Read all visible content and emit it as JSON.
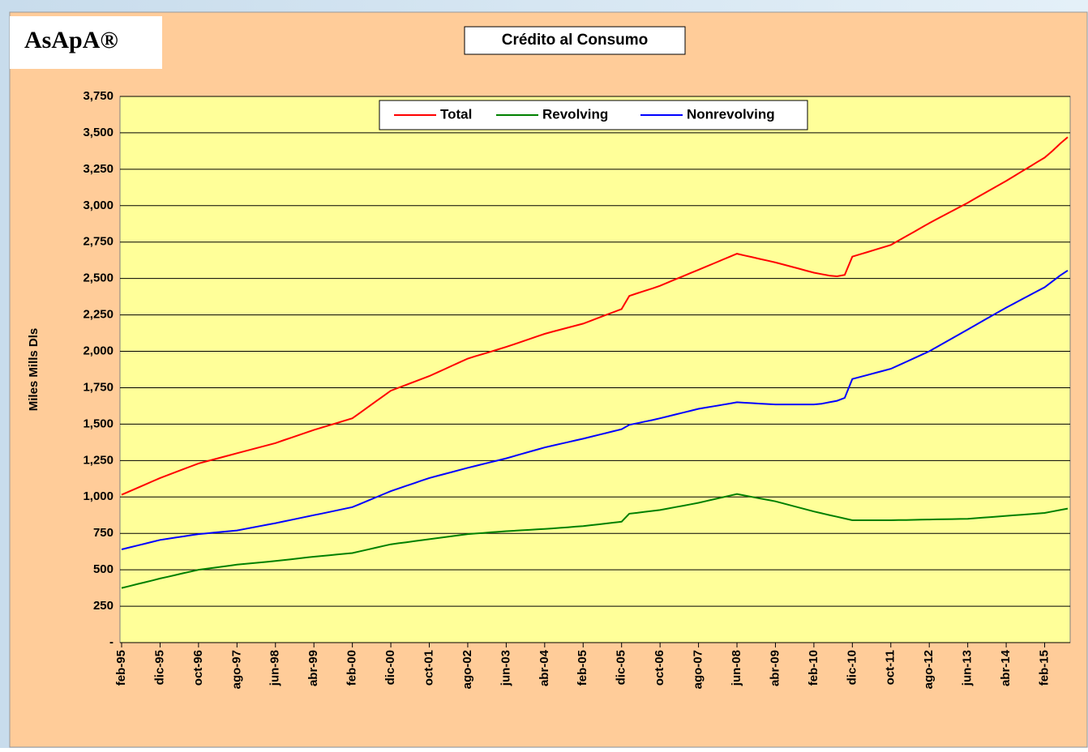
{
  "logo": "AsApA®",
  "chart_data": {
    "type": "line",
    "title": "Crédito al Consumo",
    "y_label": "Miles Mills Dls",
    "categories": [
      "feb-95",
      null,
      null,
      null,
      null,
      "dic-95",
      null,
      null,
      null,
      null,
      "oct-96",
      null,
      null,
      null,
      null,
      "ago-97",
      null,
      null,
      null,
      null,
      "jun-98",
      null,
      null,
      null,
      null,
      "abr-99",
      null,
      null,
      null,
      null,
      "feb-00",
      null,
      null,
      null,
      null,
      "dic-00",
      null,
      null,
      null,
      null,
      "oct-01",
      null,
      null,
      null,
      null,
      "ago-02",
      null,
      null,
      null,
      null,
      "jun-03",
      null,
      null,
      null,
      null,
      "abr-04",
      null,
      null,
      null,
      null,
      "feb-05",
      null,
      null,
      null,
      null,
      "dic-05",
      null,
      null,
      null,
      null,
      "oct-06",
      null,
      null,
      null,
      null,
      "ago-07",
      null,
      null,
      null,
      null,
      "jun-08",
      null,
      null,
      null,
      null,
      "abr-09",
      null,
      null,
      null,
      null,
      "feb-10",
      null,
      null,
      null,
      null,
      "dic-10",
      null,
      null,
      null,
      null,
      "oct-11",
      null,
      null,
      null,
      null,
      "ago-12",
      null,
      null,
      null,
      null,
      "jun-13",
      null,
      null,
      null,
      null,
      "abr-14",
      null,
      null,
      null,
      null,
      "feb-15",
      null,
      null,
      null
    ],
    "series": [
      {
        "name": "Total",
        "color": "#ff0000",
        "values": [
          1015,
          1038,
          1061,
          1084,
          1107,
          1130,
          1150,
          1170,
          1190,
          1210,
          1230,
          1244,
          1258,
          1272,
          1286,
          1300,
          1314,
          1328,
          1342,
          1356,
          1370,
          1388,
          1406,
          1424,
          1442,
          1460,
          1476,
          1492,
          1508,
          1524,
          1540,
          1578,
          1616,
          1654,
          1692,
          1730,
          1750,
          1770,
          1790,
          1810,
          1830,
          1854,
          1878,
          1902,
          1926,
          1950,
          1966,
          1982,
          1998,
          2014,
          2030,
          2048,
          2066,
          2084,
          2102,
          2120,
          2134,
          2148,
          2162,
          2176,
          2190,
          2210,
          2230,
          2250,
          2270,
          2290,
          2380,
          2398,
          2415,
          2432,
          2450,
          2472,
          2494,
          2516,
          2538,
          2560,
          2582,
          2604,
          2626,
          2648,
          2670,
          2658,
          2646,
          2634,
          2622,
          2610,
          2596,
          2582,
          2568,
          2554,
          2540,
          2530,
          2520,
          2515,
          2525,
          2650,
          2666,
          2682,
          2698,
          2714,
          2730,
          2760,
          2790,
          2820,
          2850,
          2880,
          2908,
          2936,
          2964,
          2992,
          3020,
          3050,
          3080,
          3110,
          3140,
          3170,
          3202,
          3234,
          3266,
          3298,
          3330,
          3375,
          3425,
          3470
        ]
      },
      {
        "name": "Revolving",
        "color": "#008000",
        "values": [
          375,
          388,
          401,
          414,
          427,
          440,
          452,
          464,
          476,
          488,
          500,
          507,
          514,
          521,
          528,
          535,
          540,
          545,
          550,
          555,
          560,
          566,
          572,
          578,
          584,
          590,
          595,
          600,
          605,
          610,
          615,
          627,
          639,
          651,
          663,
          675,
          682,
          689,
          696,
          703,
          710,
          717,
          724,
          731,
          738,
          745,
          749,
          753,
          757,
          761,
          765,
          768,
          771,
          774,
          777,
          780,
          784,
          788,
          792,
          796,
          800,
          806,
          812,
          818,
          824,
          830,
          885,
          891,
          898,
          904,
          910,
          920,
          930,
          940,
          950,
          960,
          972,
          984,
          996,
          1008,
          1020,
          1010,
          1000,
          990,
          980,
          970,
          956,
          942,
          928,
          914,
          900,
          888,
          876,
          864,
          852,
          840,
          840,
          840,
          840,
          840,
          840,
          841,
          842,
          843,
          844,
          845,
          846,
          847,
          848,
          849,
          850,
          854,
          858,
          862,
          866,
          870,
          874,
          878,
          882,
          886,
          890,
          900,
          910,
          920
        ]
      },
      {
        "name": "Nonrevolving",
        "color": "#0000ff",
        "values": [
          640,
          653,
          666,
          679,
          692,
          705,
          713,
          721,
          729,
          737,
          745,
          750,
          755,
          760,
          765,
          770,
          780,
          790,
          800,
          810,
          820,
          831,
          842,
          853,
          864,
          875,
          886,
          897,
          908,
          919,
          930,
          952,
          974,
          996,
          1018,
          1040,
          1058,
          1076,
          1094,
          1112,
          1130,
          1144,
          1158,
          1172,
          1186,
          1200,
          1213,
          1226,
          1239,
          1252,
          1265,
          1280,
          1295,
          1310,
          1325,
          1340,
          1352,
          1364,
          1376,
          1388,
          1400,
          1413,
          1426,
          1439,
          1452,
          1465,
          1495,
          1506,
          1517,
          1528,
          1540,
          1553,
          1566,
          1579,
          1592,
          1605,
          1614,
          1623,
          1632,
          1641,
          1650,
          1647,
          1644,
          1641,
          1638,
          1635,
          1635,
          1635,
          1635,
          1635,
          1635,
          1640,
          1650,
          1660,
          1680,
          1810,
          1824,
          1838,
          1852,
          1866,
          1880,
          1904,
          1928,
          1952,
          1976,
          2000,
          2030,
          2060,
          2090,
          2120,
          2150,
          2180,
          2210,
          2240,
          2270,
          2300,
          2328,
          2356,
          2384,
          2412,
          2440,
          2480,
          2520,
          2555
        ]
      }
    ],
    "ylim": [
      0,
      3750
    ],
    "yticks": [
      {
        "value": 0,
        "label": "-"
      },
      250,
      500,
      750,
      {
        "value": 1000,
        "label": "1,000"
      },
      {
        "value": 1250,
        "label": "1,250"
      },
      {
        "value": 1500,
        "label": "1,500"
      },
      {
        "value": 1750,
        "label": "1,750"
      },
      {
        "value": 2000,
        "label": "2,000"
      },
      {
        "value": 2250,
        "label": "2,250"
      },
      {
        "value": 2500,
        "label": "2,500"
      },
      {
        "value": 2750,
        "label": "2,750"
      },
      {
        "value": 3000,
        "label": "3,000"
      },
      {
        "value": 3250,
        "label": "3,250"
      },
      {
        "value": 3500,
        "label": "3,500"
      },
      {
        "value": 3750,
        "label": "3,750"
      }
    ],
    "grid": true,
    "legend": "top"
  }
}
